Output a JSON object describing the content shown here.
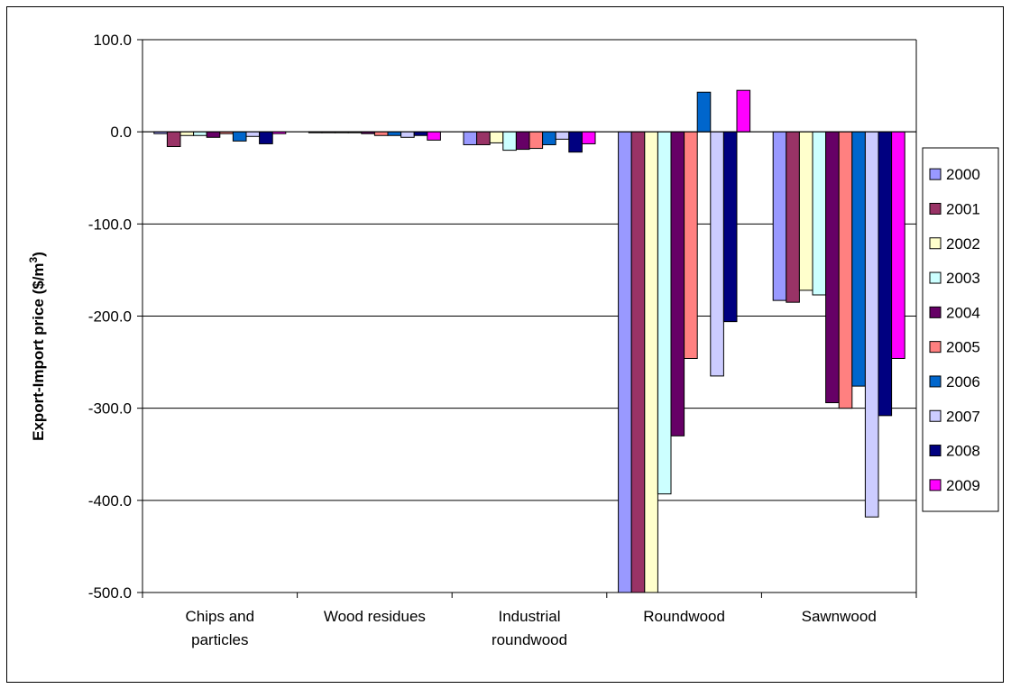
{
  "chart_data": {
    "type": "bar",
    "title": "",
    "xlabel": "",
    "ylabel": "Export-Import price ($/m³)",
    "ylabel_base": "Export-Import price ($/m",
    "ylabel_sup": "3",
    "ylabel_end": ")",
    "ylim": [
      -500,
      100
    ],
    "yticks": [
      100,
      0,
      -100,
      -200,
      -300,
      -400,
      -500
    ],
    "ytick_labels": [
      "100.0",
      "0.0",
      "-100.0",
      "-200.0",
      "-300.0",
      "-400.0",
      "-500.0"
    ],
    "grid": true,
    "legend_position": "right",
    "categories": [
      "Chips and particles",
      "Wood residues",
      "Industrial roundwood",
      "Roundwood",
      "Sawnwood"
    ],
    "category_lines": [
      [
        "Chips and",
        "particles"
      ],
      [
        "Wood residues"
      ],
      [
        "Industrial",
        "roundwood"
      ],
      [
        "Roundwood"
      ],
      [
        "Sawnwood"
      ]
    ],
    "series": [
      {
        "name": "2000",
        "color": "#9999ff",
        "values": [
          -2,
          -1,
          -14,
          -500,
          -183
        ]
      },
      {
        "name": "2001",
        "color": "#993366",
        "values": [
          -16,
          -1,
          -14,
          -500,
          -185
        ]
      },
      {
        "name": "2002",
        "color": "#ffffcc",
        "values": [
          -4,
          -1,
          -12,
          -500,
          -172
        ]
      },
      {
        "name": "2003",
        "color": "#ccffff",
        "values": [
          -4,
          -1,
          -20,
          -393,
          -177
        ]
      },
      {
        "name": "2004",
        "color": "#660066",
        "values": [
          -6,
          -2,
          -19,
          -330,
          -294
        ]
      },
      {
        "name": "2005",
        "color": "#ff8080",
        "values": [
          -2,
          -4,
          -18,
          -246,
          -300
        ]
      },
      {
        "name": "2006",
        "color": "#0066cc",
        "values": [
          -10,
          -4,
          -14,
          43,
          -276
        ]
      },
      {
        "name": "2007",
        "color": "#ccccff",
        "values": [
          -5,
          -6,
          -8,
          -265,
          -418
        ]
      },
      {
        "name": "2008",
        "color": "#000080",
        "values": [
          -13,
          -4,
          -22,
          -206,
          -308
        ]
      },
      {
        "name": "2009",
        "color": "#ff00ff",
        "values": [
          -2,
          -9,
          -13,
          45,
          -246
        ]
      }
    ]
  }
}
